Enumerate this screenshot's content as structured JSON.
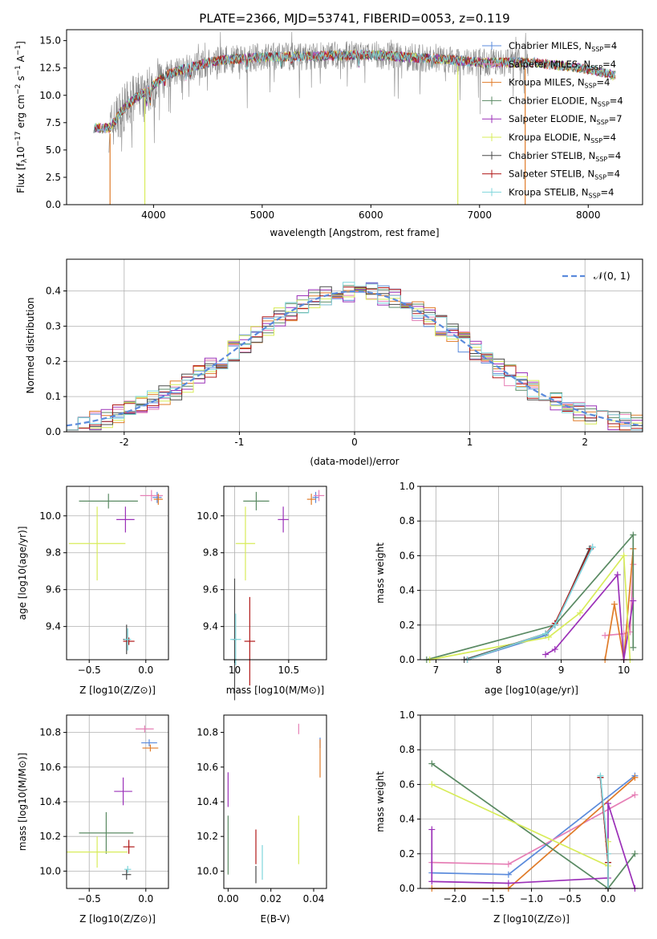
{
  "colors": {
    "Chabrier MILES": "#5b8bdc",
    "Salpeter MILES": "#e67fb6",
    "Kroupa MILES": "#e07b28",
    "Chabrier ELODIE": "#5a8a63",
    "Salpeter ELODIE": "#9b30b8",
    "Kroupa ELODIE": "#d8ec5a",
    "Chabrier STELIB": "#4a4a4a",
    "Salpeter STELIB": "#b01818",
    "Kroupa STELIB": "#7fd6db",
    "gaussian": "#5b8bdc",
    "grid": "#b0b0b0"
  },
  "chart_data": [
    {
      "type": "line",
      "title": "PLATE=2366, MJD=53741, FIBERID=0053, z=0.119",
      "xlabel": "wavelength [Angstrom, rest frame]",
      "ylabel": "Flux [f_λ10^-17 erg cm^-2 s^-1 A^-1]",
      "xlim": [
        3200,
        8500
      ],
      "ylim": [
        0,
        16
      ],
      "xticks": [
        4000,
        5000,
        6000,
        7000,
        8000
      ],
      "yticks": [
        0.0,
        2.5,
        5.0,
        7.5,
        10.0,
        12.5,
        15.0
      ],
      "grid": false,
      "legend_position": "right",
      "legend": [
        {
          "label": "Chabrier MILES, N",
          "sub": "SSP",
          "suffix": "=4",
          "key": "Chabrier MILES"
        },
        {
          "label": "Salpeter MILES, N",
          "sub": "SSP",
          "suffix": "=4",
          "key": "Salpeter MILES"
        },
        {
          "label": "Kroupa MILES, N",
          "sub": "SSP",
          "suffix": "=4",
          "key": "Kroupa MILES"
        },
        {
          "label": "Chabrier ELODIE, N",
          "sub": "SSP",
          "suffix": "=4",
          "key": "Chabrier ELODIE"
        },
        {
          "label": "Salpeter ELODIE, N",
          "sub": "SSP",
          "suffix": "=7",
          "key": "Salpeter ELODIE"
        },
        {
          "label": "Kroupa ELODIE, N",
          "sub": "SSP",
          "suffix": "=4",
          "key": "Kroupa ELODIE"
        },
        {
          "label": "Chabrier STELIB, N",
          "sub": "SSP",
          "suffix": "=4",
          "key": "Chabrier STELIB"
        },
        {
          "label": "Salpeter STELIB, N",
          "sub": "SSP",
          "suffix": "=4",
          "key": "Salpeter STELIB"
        },
        {
          "label": "Kroupa STELIB, N",
          "sub": "SSP",
          "suffix": "=4",
          "key": "Kroupa STELIB"
        }
      ],
      "continuum": [
        [
          3450,
          7.0
        ],
        [
          3600,
          7.0
        ],
        [
          3700,
          8.5
        ],
        [
          3800,
          9.5
        ],
        [
          3950,
          10.5
        ],
        [
          4100,
          11.8
        ],
        [
          4300,
          12.5
        ],
        [
          4600,
          13.2
        ],
        [
          5000,
          13.5
        ],
        [
          5500,
          13.6
        ],
        [
          6000,
          13.7
        ],
        [
          6500,
          13.4
        ],
        [
          7000,
          13.0
        ],
        [
          7500,
          13.0
        ],
        [
          8000,
          12.4
        ],
        [
          8250,
          11.8
        ]
      ],
      "spectrum_range": [
        3450,
        8250
      ],
      "model_drops": [
        {
          "x": 3600,
          "key": "Kroupa MILES"
        },
        {
          "x": 3920,
          "key": "Kroupa ELODIE"
        },
        {
          "x": 6800,
          "key": "Kroupa ELODIE"
        },
        {
          "x": 7420,
          "key": "Kroupa MILES"
        }
      ]
    },
    {
      "type": "histogram",
      "xlabel": "(data-model)/error",
      "ylabel": "Normed distribution",
      "xlim": [
        -2.5,
        2.5
      ],
      "ylim": [
        0,
        0.49
      ],
      "xticks": [
        -2,
        -1,
        0,
        1,
        2
      ],
      "yticks": [
        0.0,
        0.1,
        0.2,
        0.3,
        0.4
      ],
      "grid": true,
      "legend": {
        "label": "𝒩(0, 1)",
        "position": "top-right"
      },
      "bin_width": 0.1,
      "bin_start": -2.5
    },
    {
      "type": "errorbar",
      "xlabel": "Z [log10(Z/Z⊙)]",
      "ylabel": "age  [log10(age/yr)]",
      "xlim": [
        -0.7,
        0.2
      ],
      "ylim": [
        9.22,
        10.16
      ],
      "xticks": [
        -0.5,
        0.0
      ],
      "xticklabels": [
        "−0.5",
        "0.0"
      ],
      "yticks": [
        9.4,
        9.6,
        9.8,
        10.0
      ],
      "grid": true,
      "points": [
        {
          "key": "Chabrier MILES",
          "x": 0.1,
          "xerr": 0.04,
          "y": 10.1,
          "yerr": 0.03
        },
        {
          "key": "Salpeter MILES",
          "x": 0.05,
          "xerr": 0.1,
          "y": 10.11,
          "yerr": 0.03
        },
        {
          "key": "Kroupa MILES",
          "x": 0.11,
          "xerr": 0.04,
          "y": 10.09,
          "yerr": 0.03
        },
        {
          "key": "Chabrier ELODIE",
          "x": -0.33,
          "xerr": 0.26,
          "y": 10.08,
          "yerr": 0.04
        },
        {
          "key": "Salpeter ELODIE",
          "x": -0.18,
          "xerr": 0.08,
          "y": 9.98,
          "yerr": 0.07
        },
        {
          "key": "Kroupa ELODIE",
          "x": -0.43,
          "xerr": 0.25,
          "y": 9.85,
          "yerr": 0.2
        },
        {
          "key": "Chabrier STELIB",
          "x": -0.17,
          "xerr": 0.03,
          "y": 9.33,
          "yerr": 0.08
        },
        {
          "key": "Salpeter STELIB",
          "x": -0.15,
          "xerr": 0.05,
          "y": 9.32,
          "yerr": 0.02
        },
        {
          "key": "Kroupa STELIB",
          "x": -0.16,
          "xerr": 0.03,
          "y": 9.33,
          "yerr": 0.06
        }
      ]
    },
    {
      "type": "errorbar",
      "xlabel": "mass [log10(M/M⊙)]",
      "ylabel": "",
      "xlim": [
        9.9,
        10.85
      ],
      "ylim": [
        9.22,
        10.16
      ],
      "xticks": [
        10.0,
        10.5
      ],
      "yticks": [
        9.4,
        9.6,
        9.8,
        10.0
      ],
      "grid": true,
      "points": [
        {
          "key": "Chabrier MILES",
          "x": 10.75,
          "xerr": 0.03,
          "y": 10.1,
          "yerr": 0.03
        },
        {
          "key": "Salpeter MILES",
          "x": 10.78,
          "xerr": 0.05,
          "y": 10.11,
          "yerr": 0.03
        },
        {
          "key": "Kroupa MILES",
          "x": 10.71,
          "xerr": 0.04,
          "y": 10.09,
          "yerr": 0.03
        },
        {
          "key": "Chabrier ELODIE",
          "x": 10.2,
          "xerr": 0.12,
          "y": 10.08,
          "yerr": 0.05
        },
        {
          "key": "Salpeter ELODIE",
          "x": 10.45,
          "xerr": 0.05,
          "y": 9.98,
          "yerr": 0.07
        },
        {
          "key": "Kroupa ELODIE",
          "x": 10.1,
          "xerr": 0.09,
          "y": 9.85,
          "yerr": 0.2
        },
        {
          "key": "Chabrier STELIB",
          "x": 10.0,
          "xerr": 0.02,
          "y": 9.33,
          "yerr": 0.33
        },
        {
          "key": "Salpeter STELIB",
          "x": 10.14,
          "xerr": 0.05,
          "y": 9.32,
          "yerr": 0.24
        },
        {
          "key": "Kroupa STELIB",
          "x": 10.01,
          "xerr": 0.05,
          "y": 9.33,
          "yerr": 0.14
        }
      ]
    },
    {
      "type": "line",
      "xlabel": "age  [log10(age/yr)]",
      "ylabel": "mass weight",
      "xlim": [
        6.75,
        10.3
      ],
      "ylim": [
        0,
        1
      ],
      "xticks": [
        7,
        8,
        9,
        10
      ],
      "yticks": [
        0.0,
        0.2,
        0.4,
        0.6,
        0.8,
        1.0
      ],
      "grid": true,
      "series": [
        {
          "key": "Chabrier MILES",
          "x": [
            7.5,
            8.75,
            8.9,
            9.5
          ],
          "y": [
            0.0,
            0.14,
            0.2,
            0.65
          ]
        },
        {
          "key": "Salpeter MILES",
          "x": [
            9.7,
            10.0,
            10.1,
            10.15
          ],
          "y": [
            0.14,
            0.15,
            0.16,
            0.55
          ]
        },
        {
          "key": "Kroupa MILES",
          "x": [
            9.7,
            9.85,
            10.0,
            10.15
          ],
          "y": [
            0.0,
            0.32,
            0.0,
            0.64
          ]
        },
        {
          "key": "Chabrier ELODIE",
          "x": [
            6.85,
            8.9,
            10.15,
            10.15
          ],
          "y": [
            0.0,
            0.2,
            0.72,
            0.07
          ]
        },
        {
          "key": "Salpeter ELODIE",
          "x": [
            8.75,
            8.9,
            9.9,
            10.0,
            10.15
          ],
          "y": [
            0.03,
            0.06,
            0.49,
            0.0,
            0.34
          ]
        },
        {
          "key": "Kroupa ELODIE",
          "x": [
            6.9,
            8.8,
            9.3,
            10.0,
            10.1
          ],
          "y": [
            0.0,
            0.13,
            0.27,
            0.6,
            0.0
          ]
        },
        {
          "key": "Chabrier STELIB",
          "x": [
            7.45,
            8.75,
            8.9,
            9.45
          ],
          "y": [
            0.0,
            0.15,
            0.2,
            0.64
          ]
        },
        {
          "key": "Salpeter STELIB",
          "x": [
            7.5,
            8.75,
            8.9,
            9.47
          ],
          "y": [
            0.0,
            0.15,
            0.21,
            0.64
          ]
        },
        {
          "key": "Kroupa STELIB",
          "x": [
            7.5,
            8.75,
            8.9,
            9.5
          ],
          "y": [
            0.0,
            0.15,
            0.2,
            0.65
          ]
        }
      ]
    },
    {
      "type": "errorbar",
      "xlabel": "Z [log10(Z/Z⊙)]",
      "ylabel": "mass [log10(M/M⊙)]",
      "xlim": [
        -0.7,
        0.2
      ],
      "ylim": [
        9.9,
        10.9
      ],
      "xticks": [
        -0.5,
        0.0
      ],
      "xticklabels": [
        "−0.5",
        "0.0"
      ],
      "yticks": [
        10.0,
        10.2,
        10.4,
        10.6,
        10.8
      ],
      "grid": true,
      "points": [
        {
          "key": "Chabrier MILES",
          "x": 0.03,
          "xerr": 0.07,
          "y": 10.74,
          "yerr": 0.02
        },
        {
          "key": "Salpeter MILES",
          "x": -0.01,
          "xerr": 0.08,
          "y": 10.82,
          "yerr": 0.02
        },
        {
          "key": "Kroupa MILES",
          "x": 0.04,
          "xerr": 0.07,
          "y": 10.71,
          "yerr": 0.02
        },
        {
          "key": "Chabrier ELODIE",
          "x": -0.35,
          "xerr": 0.24,
          "y": 10.22,
          "yerr": 0.12
        },
        {
          "key": "Salpeter ELODIE",
          "x": -0.2,
          "xerr": 0.08,
          "y": 10.46,
          "yerr": 0.08
        },
        {
          "key": "Kroupa ELODIE",
          "x": -0.43,
          "xerr": 0.27,
          "y": 10.11,
          "yerr": 0.09
        },
        {
          "key": "Chabrier STELIB",
          "x": -0.17,
          "xerr": 0.04,
          "y": 9.98,
          "yerr": 0.03
        },
        {
          "key": "Salpeter STELIB",
          "x": -0.15,
          "xerr": 0.05,
          "y": 10.14,
          "yerr": 0.04
        },
        {
          "key": "Kroupa STELIB",
          "x": -0.16,
          "xerr": 0.03,
          "y": 10.01,
          "yerr": 0.02
        }
      ]
    },
    {
      "type": "errorbar",
      "xlabel": "E(B-V)",
      "ylabel": "",
      "xlim": [
        -0.002,
        0.046
      ],
      "ylim": [
        9.9,
        10.9
      ],
      "xticks": [
        0.0,
        0.02,
        0.04
      ],
      "xticklabels": [
        "0.00",
        "0.02",
        "0.04"
      ],
      "yticks": [
        10.0,
        10.2,
        10.4,
        10.6,
        10.8
      ],
      "grid": false,
      "points": [
        {
          "key": "Chabrier MILES",
          "x": 0.043,
          "y": 10.74,
          "yerr": 0.03
        },
        {
          "key": "Salpeter MILES",
          "x": 0.033,
          "y": 10.82,
          "yerr": 0.03
        },
        {
          "key": "Kroupa MILES",
          "x": 0.043,
          "y": 10.65,
          "yerr": 0.11
        },
        {
          "key": "Chabrier ELODIE",
          "x": 0.0,
          "y": 10.15,
          "yerr": 0.17
        },
        {
          "key": "Salpeter ELODIE",
          "x": 0.0,
          "y": 10.47,
          "yerr": 0.1
        },
        {
          "key": "Kroupa ELODIE",
          "x": 0.033,
          "y": 10.18,
          "yerr": 0.14
        },
        {
          "key": "Chabrier STELIB",
          "x": 0.013,
          "y": 9.98,
          "yerr": 0.05
        },
        {
          "key": "Salpeter STELIB",
          "x": 0.013,
          "y": 10.14,
          "yerr": 0.1
        },
        {
          "key": "Kroupa STELIB",
          "x": 0.016,
          "y": 10.05,
          "yerr": 0.1
        }
      ]
    },
    {
      "type": "line",
      "xlabel": "Z [log10(Z/Z⊙)]",
      "ylabel": "mass weight",
      "xlim": [
        -2.45,
        0.45
      ],
      "ylim": [
        0,
        1
      ],
      "xticks": [
        -2.0,
        -1.5,
        -1.0,
        -0.5,
        0.0
      ],
      "xticklabels": [
        "−2.0",
        "−1.5",
        "−1.0",
        "−0.5",
        "0.0"
      ],
      "yticks": [
        0.0,
        0.2,
        0.4,
        0.6,
        0.8,
        1.0
      ],
      "grid": true,
      "series": [
        {
          "key": "Chabrier MILES",
          "x": [
            -2.3,
            -1.3,
            0.35
          ],
          "y": [
            0.09,
            0.08,
            0.65
          ]
        },
        {
          "key": "Salpeter MILES",
          "x": [
            -2.3,
            -1.3,
            0.35
          ],
          "y": [
            0.15,
            0.14,
            0.54
          ]
        },
        {
          "key": "Kroupa MILES",
          "x": [
            -2.3,
            -1.3,
            0.35
          ],
          "y": [
            0.0,
            0.0,
            0.64
          ]
        },
        {
          "key": "Chabrier ELODIE",
          "x": [
            -2.3,
            0.0,
            0.35
          ],
          "y": [
            0.72,
            0.0,
            0.2
          ]
        },
        {
          "key": "Salpeter ELODIE",
          "x": [
            -2.3,
            -2.3,
            -1.3,
            0.0,
            0.0,
            0.35
          ],
          "y": [
            0.34,
            0.04,
            0.03,
            0.06,
            0.49,
            0.0
          ]
        },
        {
          "key": "Kroupa ELODIE",
          "x": [
            -2.3,
            0.0,
            0.0
          ],
          "y": [
            0.6,
            0.13,
            0.27
          ]
        },
        {
          "key": "Chabrier STELIB",
          "x": [
            -0.1,
            0.0,
            0.0
          ],
          "y": [
            0.64,
            0.15,
            0.0
          ]
        },
        {
          "key": "Salpeter STELIB",
          "x": [
            -0.1,
            0.0,
            0.0
          ],
          "y": [
            0.64,
            0.15,
            0.0
          ]
        },
        {
          "key": "Kroupa STELIB",
          "x": [
            -0.1,
            0.0,
            0.0
          ],
          "y": [
            0.65,
            0.2,
            0.0
          ]
        }
      ]
    }
  ]
}
